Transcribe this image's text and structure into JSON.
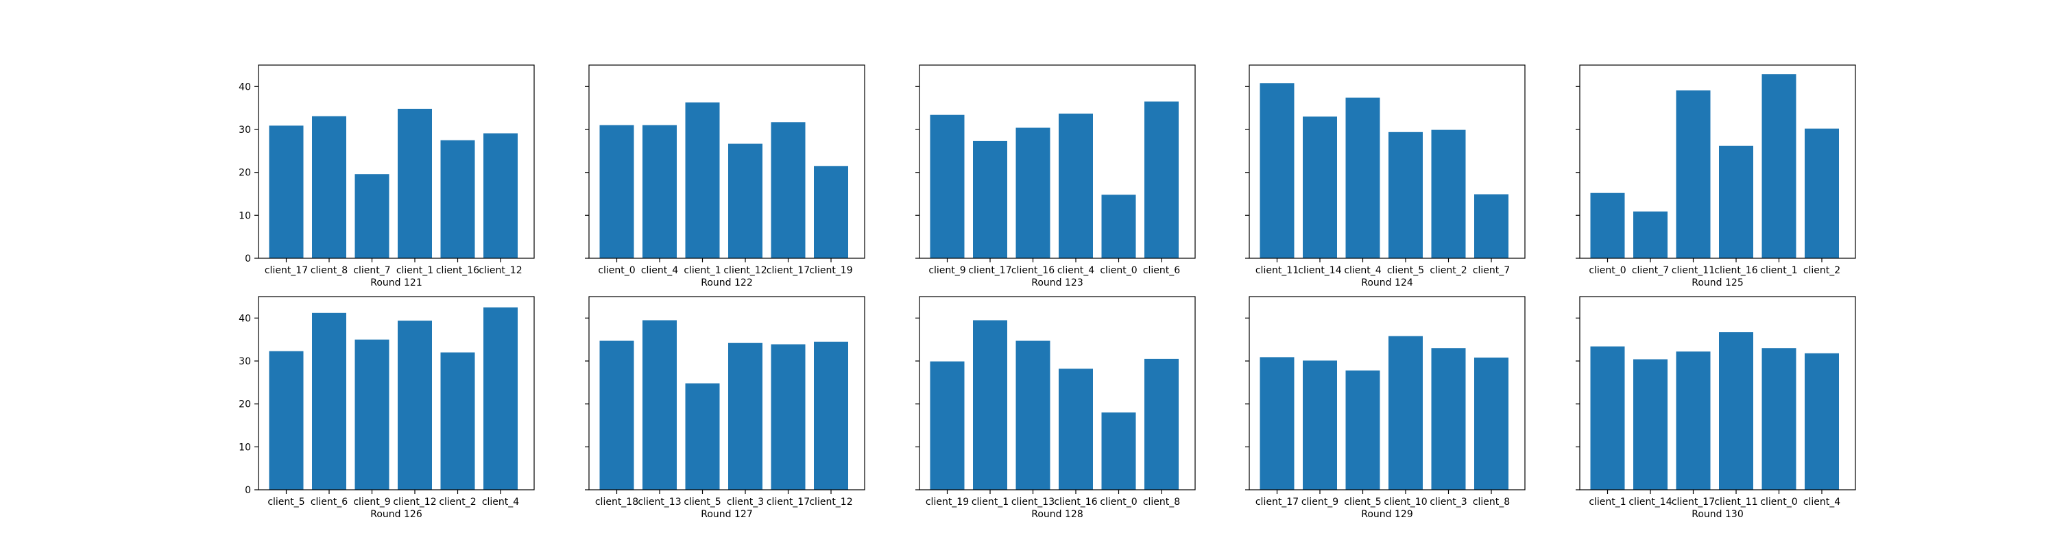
{
  "figure": {
    "bar_color": "#1f77b4",
    "axes_color": "#000000",
    "background": "#ffffff",
    "grid": false,
    "sharey": true,
    "layout": "2 rows x 5 columns"
  },
  "chart_data": [
    {
      "type": "bar",
      "xlabel": "Round 121",
      "ylim": [
        0,
        45
      ],
      "yticks": [
        0,
        10,
        20,
        30,
        40
      ],
      "categories": [
        "client_17",
        "client_8",
        "client_7",
        "client_1",
        "client_16",
        "client_12"
      ],
      "values": [
        30.9,
        33.1,
        19.6,
        34.8,
        27.5,
        29.1
      ]
    },
    {
      "type": "bar",
      "xlabel": "Round 122",
      "ylim": [
        0,
        45
      ],
      "yticks": [
        0,
        10,
        20,
        30,
        40
      ],
      "categories": [
        "client_0",
        "client_4",
        "client_1",
        "client_12",
        "client_17",
        "client_19"
      ],
      "values": [
        31.0,
        31.0,
        36.3,
        26.7,
        31.7,
        21.5
      ]
    },
    {
      "type": "bar",
      "xlabel": "Round 123",
      "ylim": [
        0,
        45
      ],
      "yticks": [
        0,
        10,
        20,
        30,
        40
      ],
      "categories": [
        "client_9",
        "client_17",
        "client_16",
        "client_4",
        "client_0",
        "client_6"
      ],
      "values": [
        33.4,
        27.3,
        30.4,
        33.7,
        14.8,
        36.5
      ]
    },
    {
      "type": "bar",
      "xlabel": "Round 124",
      "ylim": [
        0,
        45
      ],
      "yticks": [
        0,
        10,
        20,
        30,
        40
      ],
      "categories": [
        "client_11",
        "client_14",
        "client_4",
        "client_5",
        "client_2",
        "client_7"
      ],
      "values": [
        40.8,
        33.0,
        37.4,
        29.4,
        29.9,
        14.9
      ]
    },
    {
      "type": "bar",
      "xlabel": "Round 125",
      "ylim": [
        0,
        45
      ],
      "yticks": [
        0,
        10,
        20,
        30,
        40
      ],
      "categories": [
        "client_0",
        "client_7",
        "client_11",
        "client_16",
        "client_1",
        "client_2"
      ],
      "values": [
        15.2,
        10.9,
        39.1,
        26.2,
        42.9,
        30.2
      ]
    },
    {
      "type": "bar",
      "xlabel": "Round 126",
      "ylim": [
        0,
        45
      ],
      "yticks": [
        0,
        10,
        20,
        30,
        40
      ],
      "categories": [
        "client_5",
        "client_6",
        "client_9",
        "client_12",
        "client_2",
        "client_4"
      ],
      "values": [
        32.3,
        41.2,
        35.0,
        39.4,
        32.0,
        42.5
      ]
    },
    {
      "type": "bar",
      "xlabel": "Round 127",
      "ylim": [
        0,
        45
      ],
      "yticks": [
        0,
        10,
        20,
        30,
        40
      ],
      "categories": [
        "client_18",
        "client_13",
        "client_5",
        "client_3",
        "client_17",
        "client_12"
      ],
      "values": [
        34.7,
        39.5,
        24.8,
        34.2,
        33.9,
        34.5
      ]
    },
    {
      "type": "bar",
      "xlabel": "Round 128",
      "ylim": [
        0,
        45
      ],
      "yticks": [
        0,
        10,
        20,
        30,
        40
      ],
      "categories": [
        "client_19",
        "client_1",
        "client_13",
        "client_16",
        "client_0",
        "client_8"
      ],
      "values": [
        29.9,
        39.5,
        34.7,
        28.2,
        18.0,
        30.5
      ]
    },
    {
      "type": "bar",
      "xlabel": "Round 129",
      "ylim": [
        0,
        45
      ],
      "yticks": [
        0,
        10,
        20,
        30,
        40
      ],
      "categories": [
        "client_17",
        "client_9",
        "client_5",
        "client_10",
        "client_3",
        "client_8"
      ],
      "values": [
        30.9,
        30.1,
        27.8,
        35.8,
        33.0,
        30.8
      ]
    },
    {
      "type": "bar",
      "xlabel": "Round 130",
      "ylim": [
        0,
        45
      ],
      "yticks": [
        0,
        10,
        20,
        30,
        40
      ],
      "categories": [
        "client_1",
        "client_14",
        "client_17",
        "client_11",
        "client_0",
        "client_4"
      ],
      "values": [
        33.4,
        30.4,
        32.2,
        36.7,
        33.0,
        31.8
      ]
    }
  ]
}
